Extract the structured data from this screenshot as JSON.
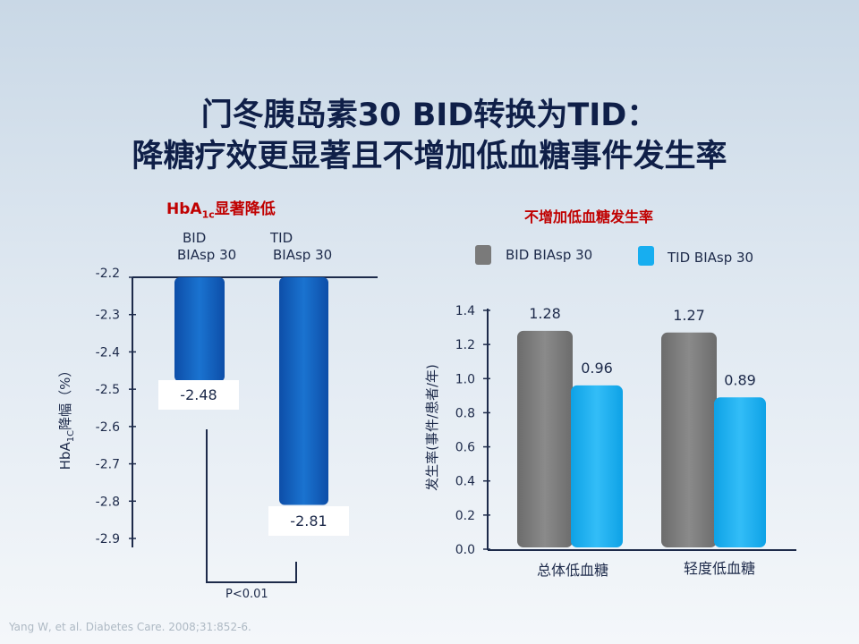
{
  "title": {
    "line1": "门冬胰岛素30 BID转换为TID：",
    "line2": "降糖疗效更显著且不增加低血糖事件发生率"
  },
  "colors": {
    "bid_left": "#1565c0",
    "tid_left": "#1060bb",
    "gray": "#7a7a7a",
    "cyan": "#17aef0",
    "title_red": "#c00000"
  },
  "citation": "Yang W, et al. Diabetes Care. 2008;31:852-6.",
  "chart_data": [
    {
      "type": "bar",
      "title_main": "HbA",
      "title_sub": "1c",
      "title_rest": "显著降低",
      "ylabel_main": "HbA",
      "ylabel_sub": "1C",
      "ylabel_rest": "降幅（%）",
      "ylim": [
        -2.9,
        -2.2
      ],
      "yticks": [
        "-2.2",
        "-2.3",
        "-2.4",
        "-2.5",
        "-2.6",
        "-2.7",
        "-2.8",
        "-2.9"
      ],
      "ytick_values": [
        -2.2,
        -2.3,
        -2.4,
        -2.5,
        -2.6,
        -2.7,
        -2.8,
        -2.9
      ],
      "categories": [
        {
          "line1": "BID",
          "line2": "BIAsp 30"
        },
        {
          "line1": "TID",
          "line2": "BIAsp 30"
        }
      ],
      "values": [
        -2.48,
        -2.81
      ],
      "data_labels": [
        "-2.48",
        "-2.81"
      ],
      "annotation": "P<0.01"
    },
    {
      "type": "bar",
      "title": "不增加低血糖发生率",
      "ylabel": "发生率(事件/患者/年)",
      "ylim": [
        0,
        1.4
      ],
      "yticks": [
        "0.0",
        "0.2",
        "0.4",
        "0.6",
        "0.8",
        "1.0",
        "1.2",
        "1.4"
      ],
      "ytick_values": [
        0,
        0.2,
        0.4,
        0.6,
        0.8,
        1.0,
        1.2,
        1.4
      ],
      "categories": [
        "总体低血糖",
        "轻度低血糖"
      ],
      "series": [
        {
          "name": "BID BIAsp 30",
          "values": [
            1.28,
            1.27
          ],
          "labels": [
            "1.28",
            "1.27"
          ]
        },
        {
          "name": "TID BIAsp 30",
          "values": [
            0.96,
            0.89
          ],
          "labels": [
            "0.96",
            "0.89"
          ]
        }
      ],
      "legend_position": "top"
    }
  ]
}
